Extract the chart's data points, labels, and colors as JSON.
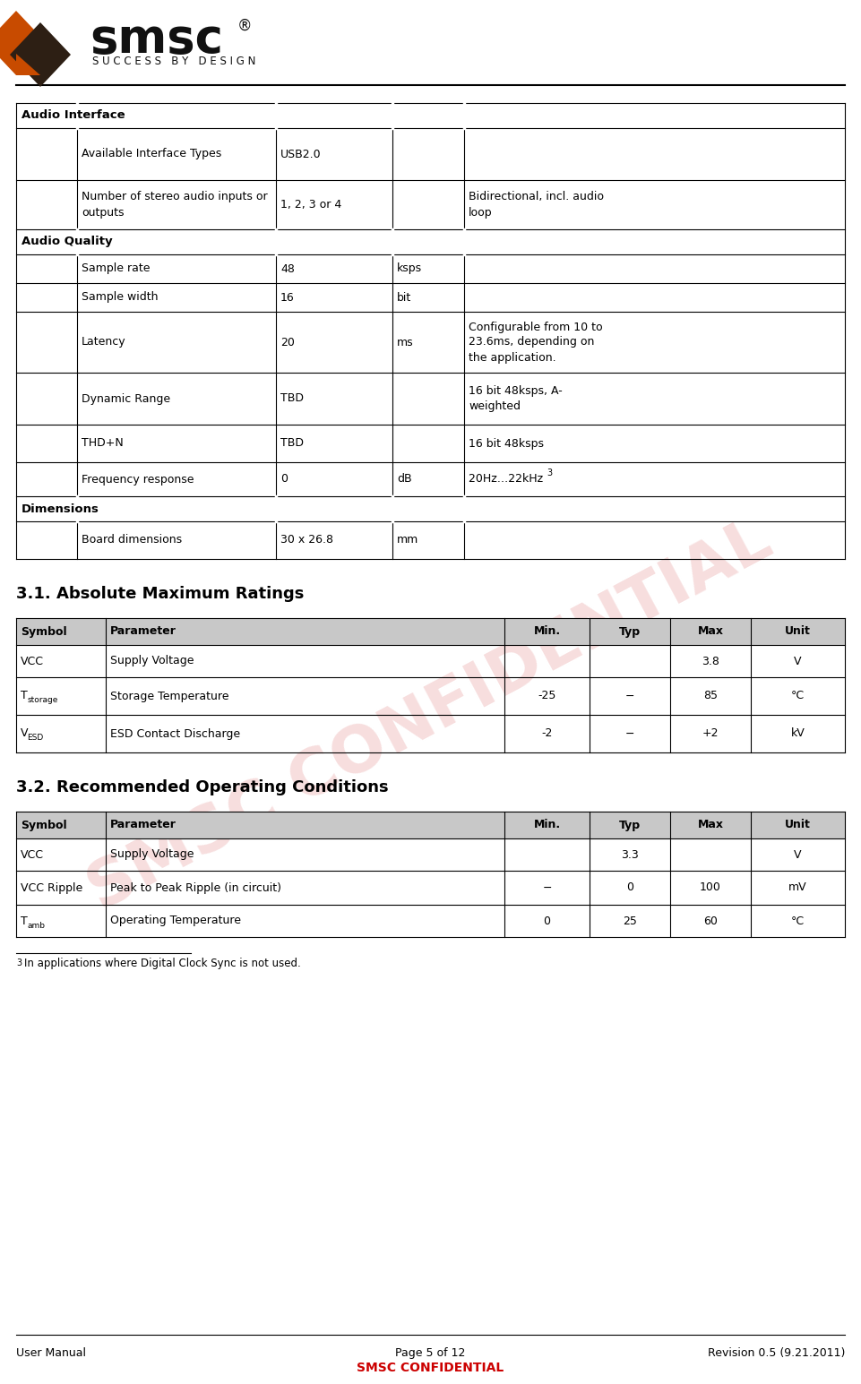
{
  "page_bg": "#ffffff",
  "confidential_color": "#cc0000",
  "watermark_color": "#e8a0a0",
  "watermark_alpha": 0.35,
  "footer_left": "User Manual",
  "footer_center": "Page 5 of 12",
  "footer_right": "Revision 0.5 (9.21.2011)",
  "footer_confidential": "SMSC CONFIDENTIAL",
  "footnote": "3 In applications where Digital Clock Sync is not used.",
  "section1_title": "3.1. Absolute Maximum Ratings",
  "section2_title": "3.2. Recommended Operating Conditions",
  "audio_table_header": "Audio Interface",
  "abs_max_headers": [
    "Symbol",
    "Parameter",
    "Min.",
    "Typ",
    "Max",
    "Unit"
  ],
  "rec_op_headers": [
    "Symbol",
    "Parameter",
    "Min.",
    "Typ",
    "Max",
    "Unit"
  ]
}
